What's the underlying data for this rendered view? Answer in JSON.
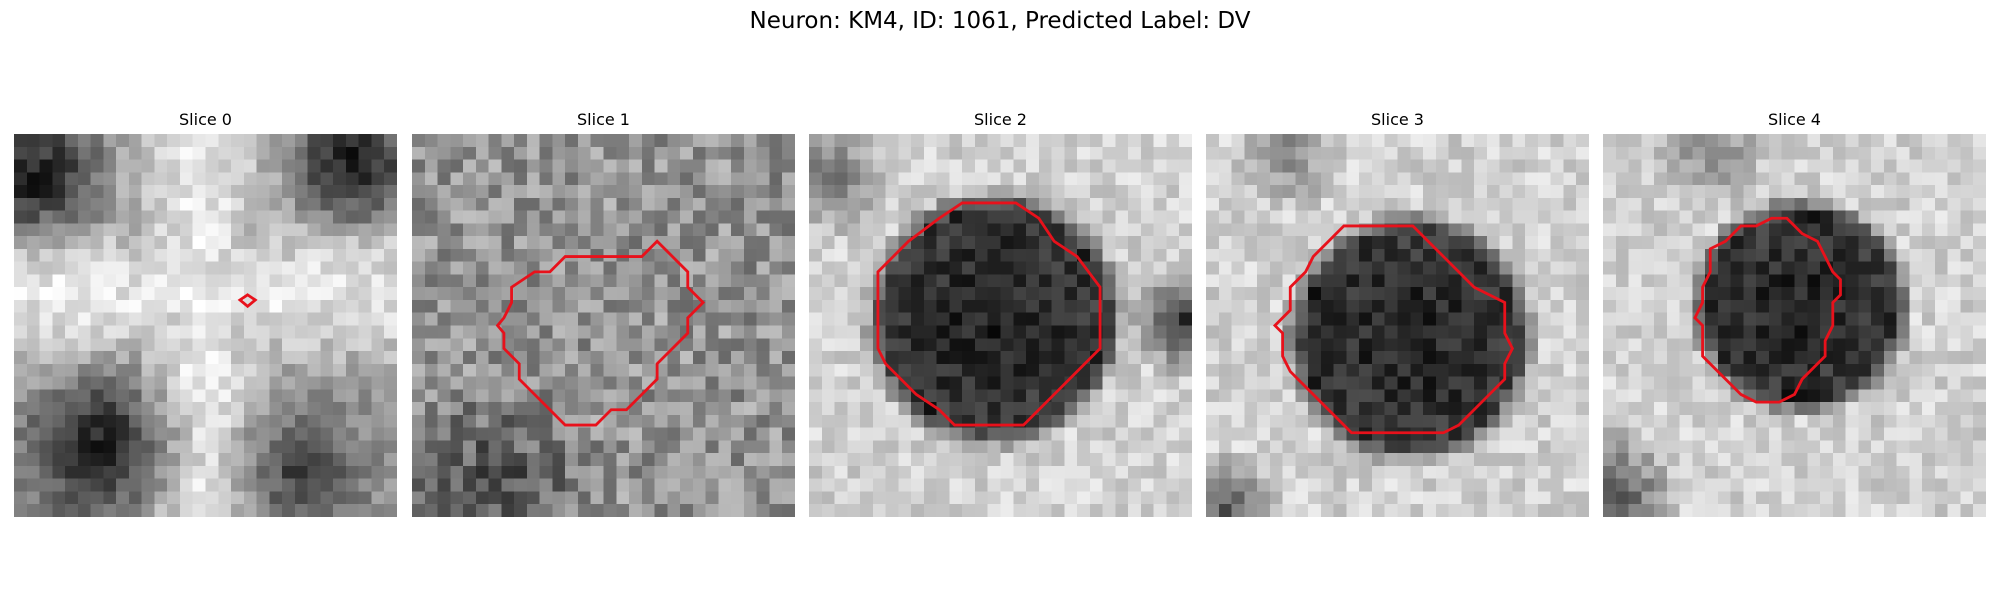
{
  "figure": {
    "title": "Neuron: KM4, ID: 1061, Predicted Label: DV"
  },
  "panels": [
    {
      "title": "Slice 0",
      "seed": 11,
      "pattern": "star"
    },
    {
      "title": "Slice 1",
      "seed": 23,
      "pattern": "noisy"
    },
    {
      "title": "Slice 2",
      "seed": 37,
      "pattern": "dark-center"
    },
    {
      "title": "Slice 3",
      "seed": 41,
      "pattern": "dark-center-ring"
    },
    {
      "title": "Slice 4",
      "seed": 53,
      "pattern": "dark-center-offset"
    }
  ],
  "outline_color": "#e8111b"
}
